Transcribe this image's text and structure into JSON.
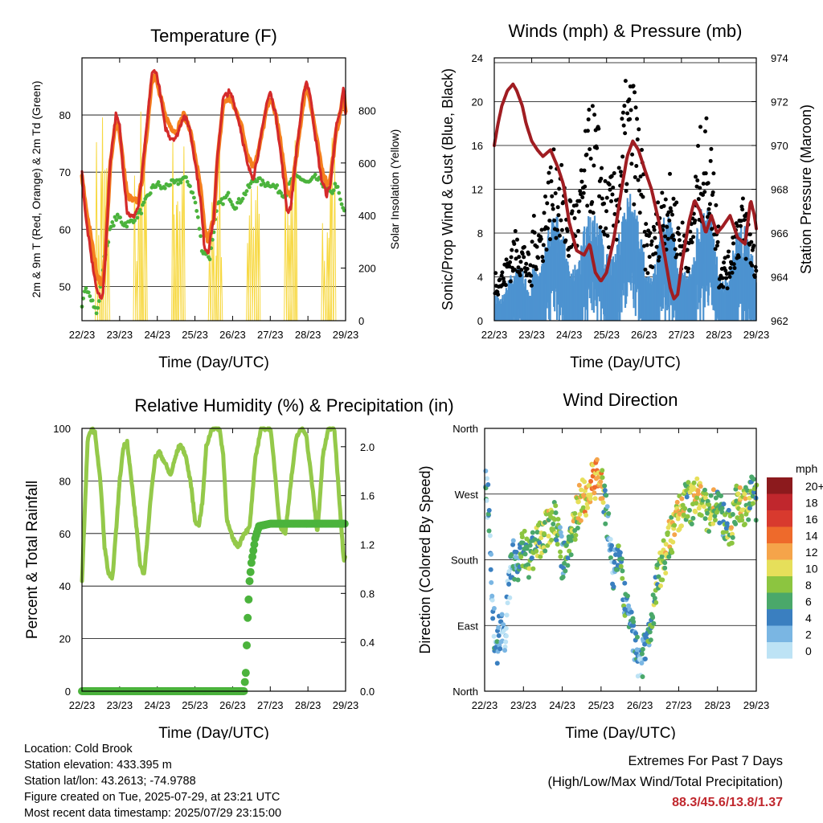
{
  "colors": {
    "temp_2m": "#d42a2a",
    "temp_9m": "#f5801e",
    "dewpoint": "#4bb33c",
    "solar": "#f7d840",
    "gust": "#000000",
    "sonic_wind": "#4d93d0",
    "pressure": "#a01d22",
    "humidity": "#94c94a",
    "precip": "#4bb33c",
    "extremes_text": "#c0272d"
  },
  "chart_data": [
    {
      "type": "line",
      "title": "Temperature (F)",
      "xlabel": "Time (Day/UTC)",
      "ylabel": "2m & 9m T (Red, Orange) & 2m Td (Green)",
      "y2label": "Solar Insolation (Yellow)",
      "x_ticks": [
        "22/23",
        "23/23",
        "24/23",
        "25/23",
        "26/23",
        "27/23",
        "28/23",
        "29/23"
      ],
      "xlim": [
        0,
        7
      ],
      "ylim": [
        44,
        90
      ],
      "y_ticks": [
        50,
        60,
        70,
        80
      ],
      "y2lim": [
        0,
        1000
      ],
      "y2_ticks": [
        0,
        200,
        400,
        600,
        800
      ],
      "grid": "horizontal",
      "series": [
        {
          "name": "2m T",
          "axis": "left",
          "color": "#d42a2a",
          "x": [
            0,
            0.1,
            0.25,
            0.4,
            0.55,
            0.62,
            0.75,
            0.9,
            1.0,
            1.1,
            1.2,
            1.35,
            1.5,
            1.6,
            1.75,
            1.85,
            1.95,
            2.05,
            2.2,
            2.35,
            2.5,
            2.7,
            2.85,
            3.0,
            3.15,
            3.25,
            3.35,
            3.5,
            3.6,
            3.75,
            3.9,
            4.0,
            4.2,
            4.4,
            4.55,
            4.7,
            4.9,
            5.0,
            5.15,
            5.3,
            5.45,
            5.55,
            5.7,
            5.85,
            5.95,
            6.05,
            6.2,
            6.35,
            6.5,
            6.6,
            6.75,
            6.85,
            6.95,
            7.0
          ],
          "y": [
            70,
            62,
            55,
            49,
            48,
            55,
            72,
            80,
            78,
            70,
            63,
            62,
            64,
            70,
            80,
            87,
            88,
            85,
            78,
            76,
            76,
            80,
            78,
            72,
            65,
            57,
            56,
            62,
            73,
            83,
            84,
            83,
            78,
            71,
            69,
            74,
            82,
            84,
            80,
            72,
            63,
            64,
            74,
            82,
            86,
            84,
            76,
            69,
            66,
            68,
            78,
            80,
            85,
            80
          ]
        },
        {
          "name": "9m T",
          "axis": "left",
          "color": "#f5801e",
          "x": [
            0,
            0.1,
            0.25,
            0.4,
            0.55,
            0.62,
            0.75,
            0.9,
            1.0,
            1.1,
            1.2,
            1.35,
            1.5,
            1.6,
            1.75,
            1.85,
            1.95,
            2.05,
            2.2,
            2.35,
            2.5,
            2.7,
            2.85,
            3.0,
            3.15,
            3.25,
            3.35,
            3.5,
            3.6,
            3.75,
            3.9,
            4.0,
            4.2,
            4.4,
            4.55,
            4.7,
            4.9,
            5.0,
            5.15,
            5.3,
            5.45,
            5.55,
            5.7,
            5.85,
            5.95,
            6.05,
            6.2,
            6.35,
            6.5,
            6.6,
            6.75,
            6.85,
            6.95,
            7.0
          ],
          "y": [
            69,
            64,
            58,
            52,
            50,
            56,
            71,
            79,
            77,
            71,
            66,
            65,
            65,
            69,
            79,
            86,
            87,
            84,
            80,
            78,
            77,
            80,
            78,
            73,
            67,
            60,
            58,
            62,
            72,
            82,
            83,
            82,
            79,
            73,
            71,
            74,
            81,
            83,
            80,
            74,
            66,
            66,
            73,
            81,
            85,
            83,
            77,
            71,
            68,
            69,
            77,
            80,
            84,
            81
          ]
        },
        {
          "name": "2m Td",
          "axis": "left",
          "color": "#4bb33c",
          "x": [
            0,
            0.1,
            0.2,
            0.3,
            0.4,
            0.5,
            0.6,
            0.75,
            0.9,
            1.0,
            1.1,
            1.25,
            1.4,
            1.55,
            1.7,
            1.85,
            2.0,
            2.15,
            2.3,
            2.5,
            2.7,
            2.85,
            3.0,
            3.1,
            3.2,
            3.3,
            3.4,
            3.5,
            3.6,
            3.75,
            3.9,
            4.05,
            4.2,
            4.4,
            4.6,
            4.8,
            5.0,
            5.2,
            5.4,
            5.6,
            5.8,
            6.0,
            6.2,
            6.4,
            6.6,
            6.75,
            6.9,
            7.0
          ],
          "y": [
            46,
            50,
            49,
            47,
            45,
            50,
            55,
            60,
            62,
            62,
            61,
            61,
            62,
            63,
            65,
            67,
            68,
            67,
            68,
            68,
            69,
            68,
            65,
            61,
            56,
            56,
            55,
            60,
            64,
            65,
            66,
            64,
            65,
            67,
            69,
            68,
            68,
            67,
            66,
            69,
            69,
            68,
            69,
            68,
            66,
            68,
            64,
            63
          ]
        },
        {
          "name": "Solar Insolation",
          "axis": "right",
          "color": "#f7d840",
          "days": [
            0,
            1,
            2,
            3,
            4,
            5,
            6
          ],
          "peaks": [
            950,
            930,
            960,
            850,
            840,
            900,
            880
          ]
        }
      ]
    },
    {
      "type": "scatter",
      "title": "Winds (mph) & Pressure (mb)",
      "xlabel": "Time (Day/UTC)",
      "ylabel": "Sonic/Prop Wind & Gust (Blue, Black)",
      "y2label": "Station Pressure (Maroon)",
      "x_ticks": [
        "22/23",
        "23/23",
        "24/23",
        "25/23",
        "26/23",
        "27/23",
        "28/23",
        "29/23"
      ],
      "xlim": [
        0,
        7
      ],
      "ylim": [
        0,
        24
      ],
      "y_ticks": [
        0,
        4,
        8,
        12,
        16,
        20,
        24
      ],
      "y2lim": [
        962,
        974
      ],
      "y2_ticks": [
        962,
        964,
        966,
        968,
        970,
        972,
        974
      ],
      "grid": "horizontal",
      "series": [
        {
          "name": "Gust",
          "axis": "left",
          "color": "#000000",
          "daily_profile": {
            "days": [
              0,
              1,
              2,
              3,
              4,
              5,
              6
            ],
            "peak": [
              8,
              15,
              19,
              22,
              13,
              18,
              11
            ],
            "base": [
              3,
              6,
              7,
              8,
              6,
              4,
              3
            ]
          }
        },
        {
          "name": "Sonic/Prop Wind",
          "axis": "left",
          "color": "#4d93d0",
          "daily_profile": {
            "days": [
              0,
              1,
              2,
              3,
              4,
              5,
              6
            ],
            "peak": [
              5,
              10,
              11,
              12,
              10,
              11,
              9
            ],
            "base": [
              1,
              2,
              2,
              3,
              1,
              1,
              1
            ]
          }
        },
        {
          "name": "Station Pressure",
          "axis": "right",
          "color": "#a01d22",
          "x": [
            0,
            0.1,
            0.2,
            0.35,
            0.5,
            0.6,
            0.75,
            0.85,
            1.0,
            1.15,
            1.3,
            1.5,
            1.7,
            1.85,
            2.0,
            2.2,
            2.4,
            2.55,
            2.7,
            2.85,
            3.0,
            3.2,
            3.4,
            3.55,
            3.7,
            3.85,
            4.0,
            4.2,
            4.4,
            4.55,
            4.7,
            4.8,
            4.9,
            5.0,
            5.2,
            5.35,
            5.5,
            5.65,
            5.8,
            5.95,
            6.1,
            6.3,
            6.5,
            6.7,
            6.85,
            6.95,
            7.0
          ],
          "y": [
            970,
            971,
            971.8,
            972.5,
            972.8,
            972.5,
            971.8,
            971,
            970.2,
            969.8,
            969.5,
            969.8,
            969,
            968.2,
            966.5,
            965.2,
            965,
            965.5,
            964.2,
            963.8,
            964.2,
            965.8,
            968,
            969.5,
            970.2,
            969.8,
            969,
            968,
            966.5,
            965,
            963.5,
            963,
            963.2,
            964.5,
            966.5,
            967.5,
            967,
            966,
            966.8,
            966,
            966.3,
            966.8,
            965.8,
            965.5,
            967.5,
            966.8,
            966.2
          ]
        }
      ]
    },
    {
      "type": "line",
      "title": "Relative Humidity (%) & Precipitation (in)",
      "xlabel": "Time (Day/UTC)",
      "ylabel": "Percent & Total Rainfall",
      "x_ticks": [
        "22/23",
        "23/23",
        "24/23",
        "25/23",
        "26/23",
        "27/23",
        "28/23",
        "29/23"
      ],
      "xlim": [
        0,
        7
      ],
      "ylim": [
        0,
        100
      ],
      "y_ticks": [
        0,
        20,
        40,
        60,
        80,
        100
      ],
      "y2lim": [
        0,
        2.15
      ],
      "y2_ticks": [
        "0.0",
        "0.4",
        "0.8",
        "1.2",
        "1.6",
        "2.0"
      ],
      "grid": "horizontal",
      "series": [
        {
          "name": "Relative Humidity",
          "axis": "left",
          "color": "#94c94a",
          "x": [
            0,
            0.08,
            0.15,
            0.25,
            0.35,
            0.5,
            0.6,
            0.7,
            0.8,
            0.9,
            1.0,
            1.1,
            1.2,
            1.3,
            1.45,
            1.55,
            1.65,
            1.75,
            1.85,
            1.95,
            2.05,
            2.2,
            2.35,
            2.5,
            2.6,
            2.75,
            2.9,
            3.0,
            3.1,
            3.2,
            3.3,
            3.45,
            3.55,
            3.65,
            3.75,
            3.85,
            4.0,
            4.15,
            4.3,
            4.45,
            4.6,
            4.75,
            4.9,
            5.0,
            5.1,
            5.25,
            5.4,
            5.55,
            5.7,
            5.85,
            5.95,
            6.1,
            6.25,
            6.4,
            6.55,
            6.7,
            6.85,
            6.95,
            7.0
          ],
          "y": [
            42,
            70,
            95,
            100,
            98,
            78,
            55,
            45,
            42,
            60,
            80,
            93,
            95,
            82,
            62,
            47,
            45,
            60,
            78,
            89,
            91,
            87,
            82,
            90,
            94,
            90,
            78,
            65,
            63,
            72,
            93,
            100,
            100,
            100,
            90,
            65,
            58,
            55,
            60,
            62,
            88,
            100,
            100,
            100,
            87,
            63,
            60,
            80,
            97,
            100,
            98,
            80,
            60,
            90,
            100,
            100,
            70,
            50,
            52
          ]
        },
        {
          "name": "Total Precipitation",
          "axis": "right",
          "color": "#4bb33c",
          "x": [
            0,
            4.3,
            4.35,
            4.4,
            4.45,
            4.5,
            4.55,
            4.6,
            4.7,
            5.0,
            7.0
          ],
          "y": [
            0,
            0,
            0.15,
            0.6,
            0.9,
            1.05,
            1.15,
            1.25,
            1.35,
            1.37,
            1.37
          ]
        }
      ]
    },
    {
      "type": "scatter",
      "title": "Wind Direction",
      "xlabel": "Time (Day/UTC)",
      "ylabel": "Direction (Colored By Speed)",
      "x_ticks": [
        "22/23",
        "23/23",
        "24/23",
        "25/23",
        "26/23",
        "27/23",
        "28/23",
        "29/23"
      ],
      "xlim": [
        0,
        7
      ],
      "ylim": [
        0,
        360
      ],
      "y_ticks": [
        "North",
        "East",
        "South",
        "West",
        "North"
      ],
      "grid": "horizontal",
      "colorbar": {
        "unit": "mph",
        "labels": [
          "20+",
          "18",
          "16",
          "14",
          "12",
          "10",
          "8",
          "6",
          "4",
          "2",
          "0"
        ],
        "colors": [
          "#8c1a1d",
          "#c0272d",
          "#d83a2e",
          "#ee6a2b",
          "#f5a44a",
          "#e6df5a",
          "#8cc540",
          "#4aa86a",
          "#3a7fc0",
          "#7ab6e3",
          "#bde3f5"
        ]
      },
      "series": [
        {
          "name": "Wind Direction",
          "x": [
            0,
            0.1,
            0.2,
            0.3,
            0.4,
            0.5,
            0.7,
            0.9,
            1.0,
            1.15,
            1.3,
            1.45,
            1.6,
            1.8,
            2.0,
            2.15,
            2.3,
            2.45,
            2.6,
            2.75,
            2.9,
            3.0,
            3.1,
            3.2,
            3.3,
            3.45,
            3.6,
            3.75,
            3.9,
            4.0,
            4.15,
            4.3,
            4.45,
            4.6,
            4.75,
            4.9,
            5.0,
            5.1,
            5.2,
            5.35,
            5.5,
            5.65,
            5.8,
            5.95,
            6.05,
            6.2,
            6.35,
            6.5,
            6.6,
            6.75,
            6.9,
            7.0
          ],
          "y": [
            300,
            250,
            110,
            60,
            85,
            70,
            180,
            180,
            200,
            180,
            200,
            205,
            220,
            240,
            180,
            195,
            225,
            260,
            265,
            285,
            290,
            280,
            265,
            220,
            160,
            200,
            125,
            90,
            60,
            30,
            70,
            90,
            160,
            175,
            210,
            220,
            240,
            250,
            265,
            255,
            270,
            255,
            240,
            260,
            250,
            230,
            220,
            260,
            250,
            255,
            270,
            260
          ],
          "speed": [
            4,
            3,
            2,
            3,
            4,
            1,
            3,
            5,
            6,
            7,
            6,
            8,
            9,
            8,
            4,
            7,
            9,
            10,
            11,
            12,
            12,
            11,
            6,
            3,
            2,
            7,
            5,
            4,
            4,
            2,
            4,
            6,
            7,
            8,
            9,
            10,
            11,
            9,
            6,
            9,
            10,
            8,
            9,
            8,
            6,
            5,
            9,
            7,
            10,
            8,
            6,
            7
          ]
        }
      ]
    }
  ],
  "footer": {
    "location": "Location: Cold Brook",
    "elevation": "Station elevation: 433.395 m",
    "latlon": "Station lat/lon: 43.2613; -74.9788",
    "created": "Figure created on Tue, 2025-07-29, at 23:21 UTC",
    "recent": "Most recent data timestamp: 2025/07/29 23:15:00",
    "extremes_title": "Extremes For Past 7 Days",
    "extremes_desc": "(High/Low/Max Wind/Total Precipitation)",
    "extremes_values": "88.3/45.6/13.8/1.37"
  }
}
